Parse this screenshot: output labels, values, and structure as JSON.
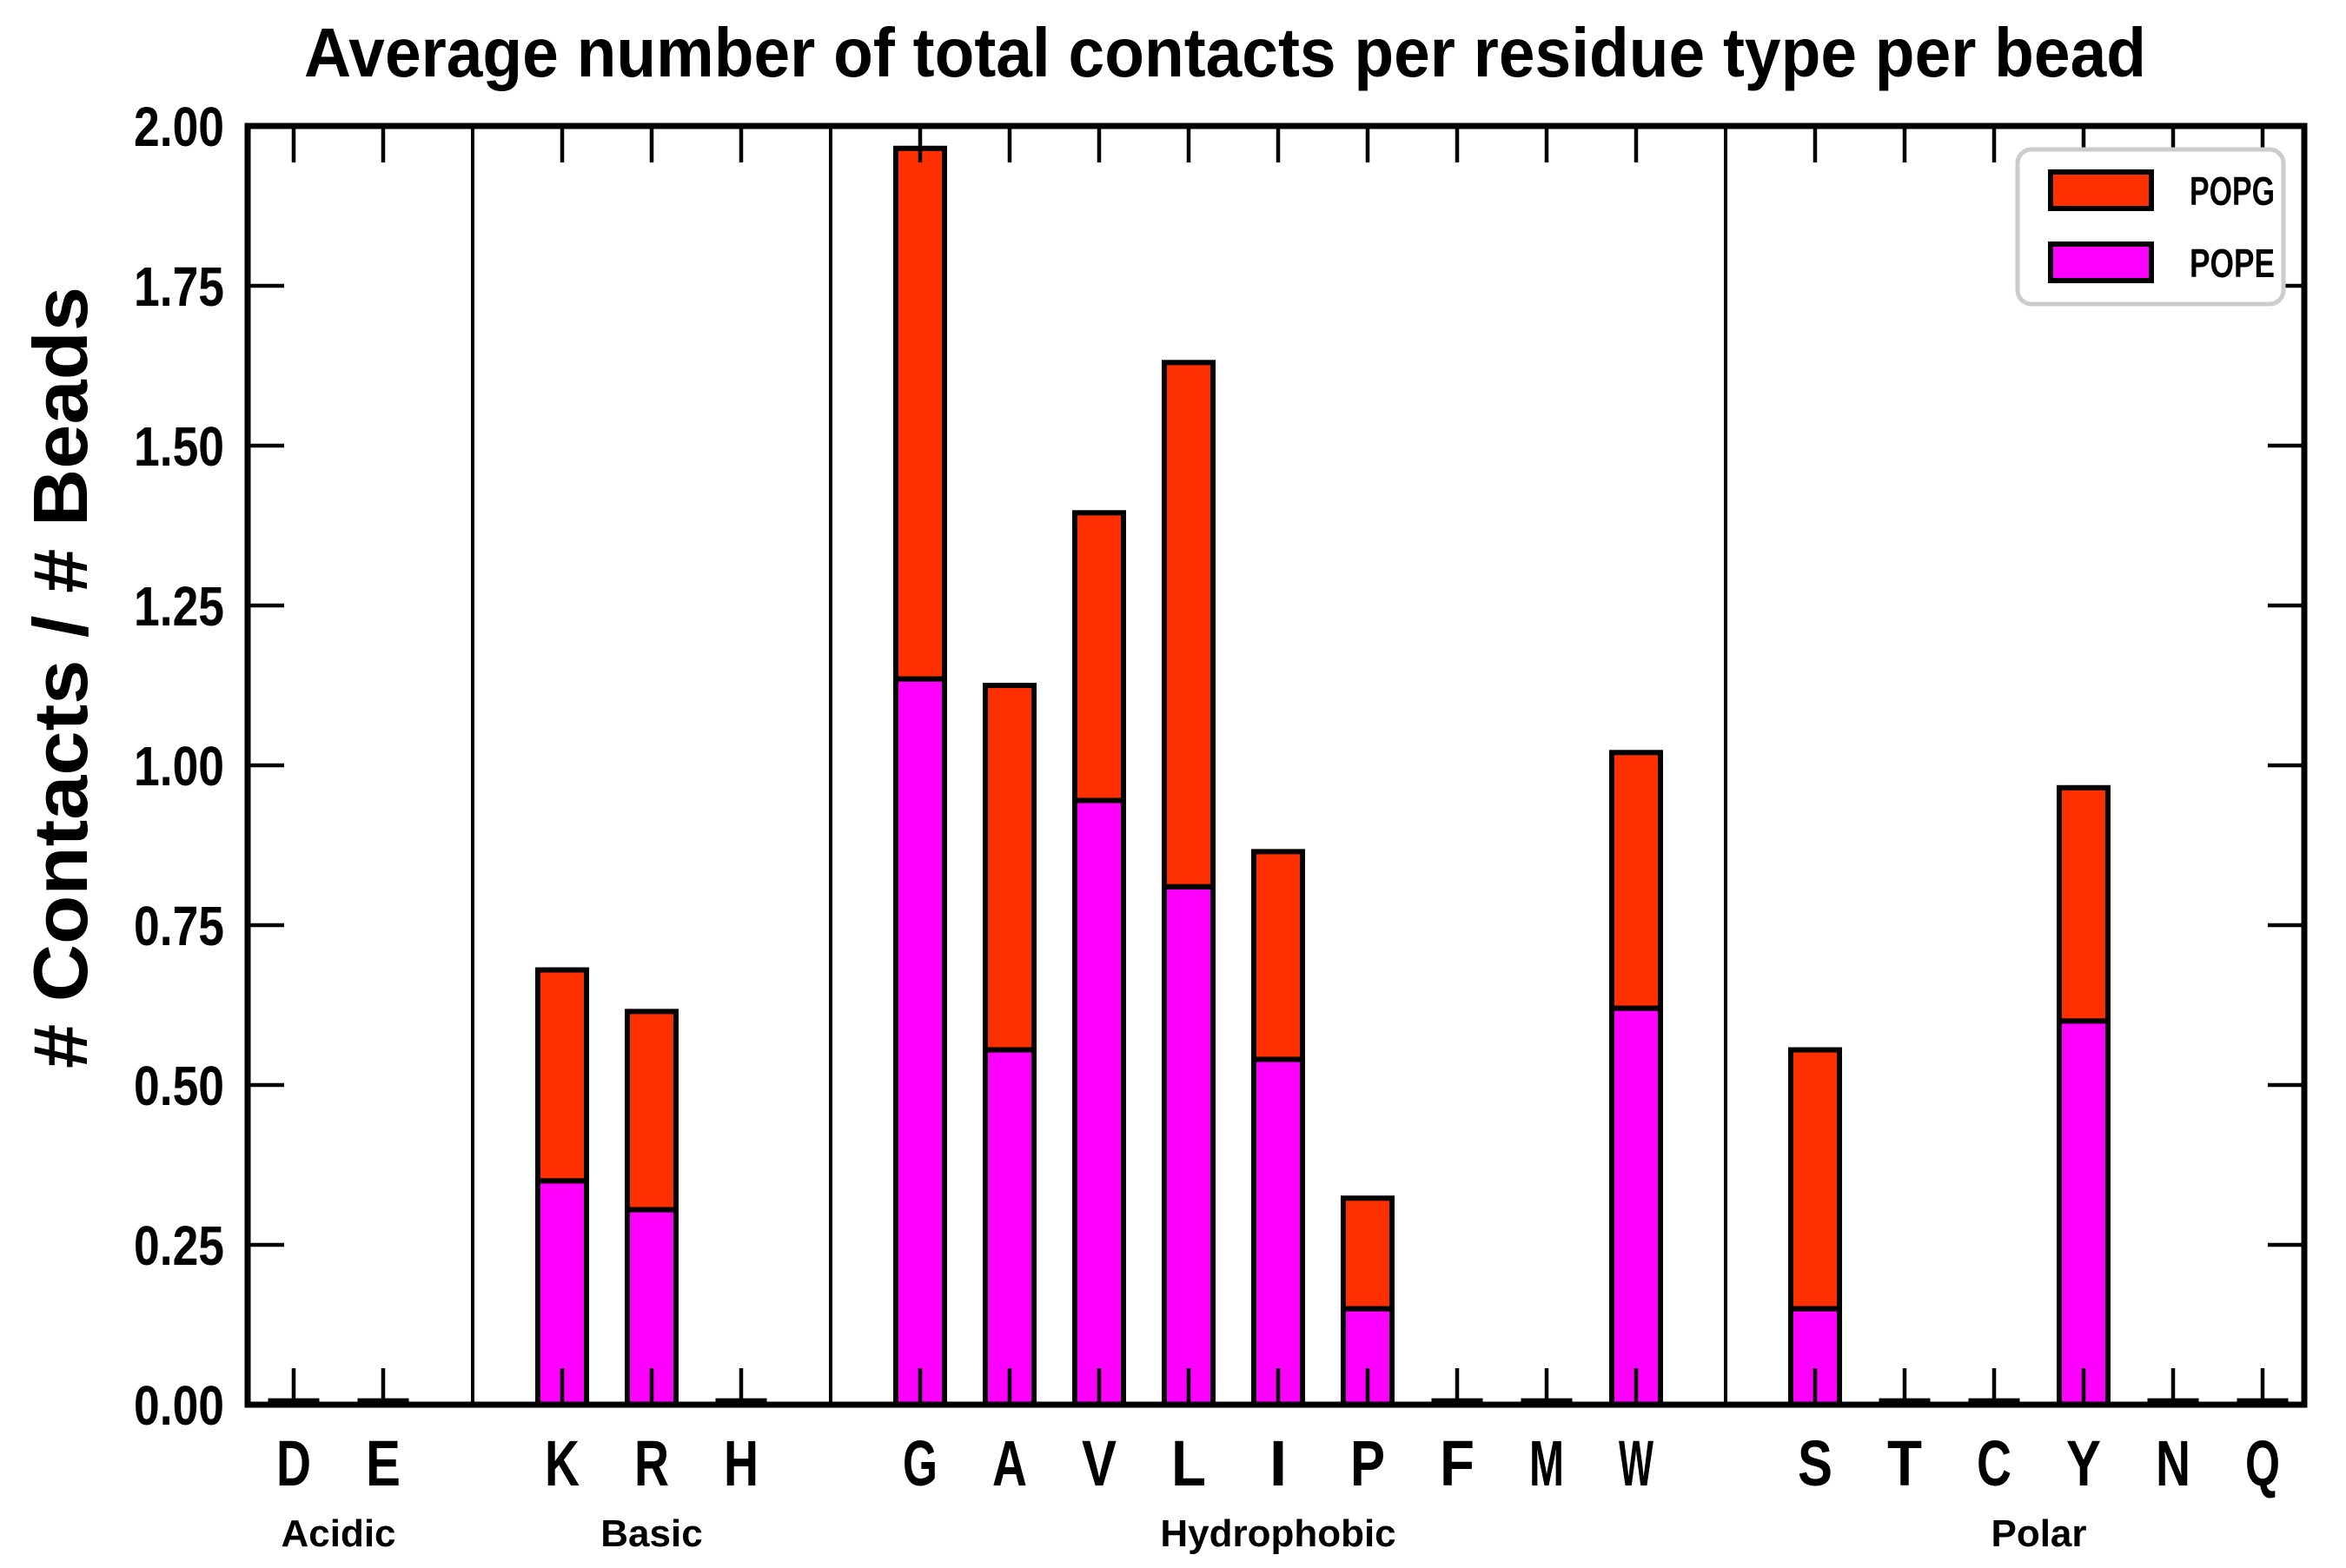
{
  "figure": {
    "title": "Average number of total contacts per residue type per bead",
    "ylabel": "# Contacts / # Beads"
  },
  "legend": {
    "items": [
      {
        "label": "POPG",
        "color": "#FF3000"
      },
      {
        "label": "POPE",
        "color": "#FF00FF"
      }
    ]
  },
  "axis": {
    "ytick_labels": [
      "0.00",
      "0.25",
      "0.50",
      "0.75",
      "1.00",
      "1.25",
      "1.50",
      "1.75",
      "2.00"
    ]
  },
  "chart_data": {
    "type": "bar",
    "stacked": true,
    "title": "Average number of total contacts per residue type per bead",
    "xlabel": "",
    "ylabel": "# Contacts / # Beads",
    "ylim": [
      0,
      2.0
    ],
    "ytick_step": 0.25,
    "grid": false,
    "legend_position": "upper right",
    "categories": [
      "D",
      "E",
      "K",
      "R",
      "H",
      "G",
      "A",
      "V",
      "L",
      "I",
      "P",
      "F",
      "M",
      "W",
      "S",
      "T",
      "C",
      "Y",
      "N",
      "Q"
    ],
    "groups": [
      {
        "label": "Acidic",
        "members": [
          "D",
          "E"
        ]
      },
      {
        "label": "Basic",
        "members": [
          "K",
          "R",
          "H"
        ]
      },
      {
        "label": "Hydrophobic",
        "members": [
          "G",
          "A",
          "V",
          "L",
          "I",
          "P",
          "F",
          "M",
          "W"
        ]
      },
      {
        "label": "Polar",
        "members": [
          "S",
          "T",
          "C",
          "Y",
          "N",
          "Q"
        ]
      }
    ],
    "series": [
      {
        "name": "POPE",
        "color": "#FF00FF",
        "values": [
          0.005,
          0.005,
          0.35,
          0.305,
          0.005,
          1.135,
          0.555,
          0.945,
          0.81,
          0.54,
          0.15,
          0.005,
          0.005,
          0.62,
          0.15,
          0.005,
          0.005,
          0.6,
          0.005,
          0.005
        ]
      },
      {
        "name": "POPG",
        "color": "#FF3000",
        "values": [
          0.003,
          0.003,
          0.33,
          0.31,
          0.003,
          0.83,
          0.57,
          0.45,
          0.82,
          0.325,
          0.173,
          0.003,
          0.003,
          0.4,
          0.405,
          0.003,
          0.003,
          0.365,
          0.003,
          0.003
        ]
      }
    ],
    "stack_totals": [
      0.008,
      0.008,
      0.68,
      0.615,
      0.008,
      1.965,
      1.125,
      1.395,
      1.63,
      0.865,
      0.323,
      0.008,
      0.008,
      1.02,
      0.555,
      0.008,
      0.008,
      0.965,
      0.008,
      0.008
    ]
  }
}
